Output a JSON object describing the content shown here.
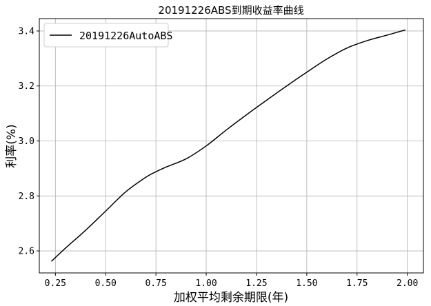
{
  "chart_data": {
    "type": "line",
    "title": "20191226ABS到期收益率曲线",
    "xlabel": "加权平均剩余期限(年)",
    "ylabel": "利率(%)",
    "xlim": [
      0.17,
      2.08
    ],
    "ylim": [
      2.52,
      3.445
    ],
    "xticks": [
      {
        "value": 0.25,
        "label": "0.25"
      },
      {
        "value": 0.5,
        "label": "0.50"
      },
      {
        "value": 0.75,
        "label": "0.75"
      },
      {
        "value": 1.0,
        "label": "1.00"
      },
      {
        "value": 1.25,
        "label": "1.25"
      },
      {
        "value": 1.5,
        "label": "1.50"
      },
      {
        "value": 1.75,
        "label": "1.75"
      },
      {
        "value": 2.0,
        "label": "2.00"
      }
    ],
    "yticks": [
      {
        "value": 2.6,
        "label": "2.6"
      },
      {
        "value": 2.8,
        "label": "2.8"
      },
      {
        "value": 3.0,
        "label": "3.0"
      },
      {
        "value": 3.2,
        "label": "3.2"
      },
      {
        "value": 3.4,
        "label": "3.4"
      }
    ],
    "grid": true,
    "legend_position": "top-left",
    "series": [
      {
        "name": "20191226AutoABS",
        "color": "#000000",
        "x": [
          0.23,
          0.3,
          0.4,
          0.5,
          0.6,
          0.7,
          0.75,
          0.8,
          0.9,
          1.0,
          1.1,
          1.2,
          1.3,
          1.4,
          1.5,
          1.6,
          1.7,
          1.8,
          1.9,
          1.99
        ],
        "y": [
          2.562,
          2.61,
          2.675,
          2.745,
          2.815,
          2.868,
          2.888,
          2.905,
          2.935,
          2.982,
          3.04,
          3.095,
          3.148,
          3.2,
          3.25,
          3.298,
          3.338,
          3.365,
          3.385,
          3.404
        ]
      }
    ]
  }
}
